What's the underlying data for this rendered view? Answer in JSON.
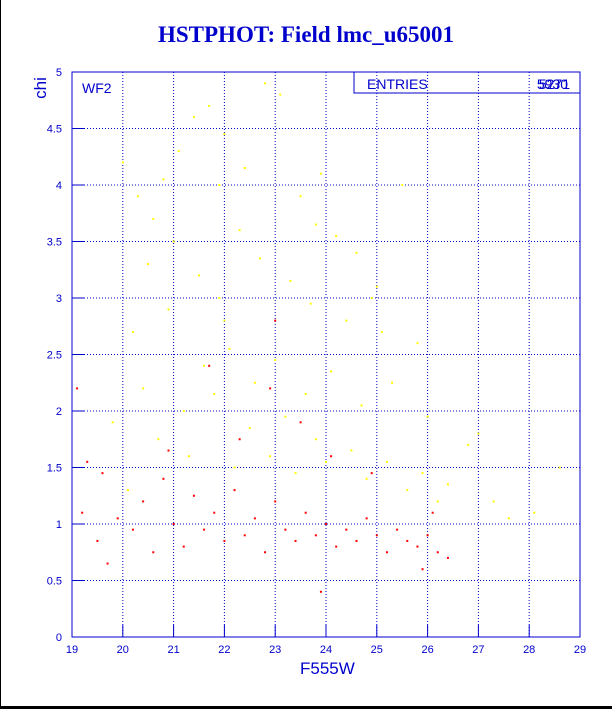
{
  "title": "HSTPHOT: Field lmc_u65001",
  "chart_data": {
    "type": "scatter",
    "title": "HSTPHOT: Field lmc_u65001",
    "xlabel": "F555W",
    "ylabel": "chi",
    "xlim": [
      19,
      29
    ],
    "ylim": [
      0,
      5
    ],
    "xticks": [
      "19",
      "20",
      "21",
      "22",
      "23",
      "24",
      "25",
      "26",
      "27",
      "28",
      "29"
    ],
    "yticks": [
      "0",
      "0.5",
      "1",
      "1.5",
      "2",
      "2.5",
      "3",
      "3.5",
      "4",
      "4.5",
      "5"
    ],
    "grid": true,
    "panel_label": "WF2",
    "stats_label": "ENTRIES",
    "stats_value_a": "5930",
    "stats_value_b": "5271",
    "colors": {
      "axis": "#0000cc",
      "accepted": "#ff0000",
      "rejected": "#ffff00"
    },
    "series": [
      {
        "color": "yellow",
        "values": [
          [
            20.0,
            4.2
          ],
          [
            20.3,
            3.9
          ],
          [
            20.6,
            3.7
          ],
          [
            20.8,
            4.05
          ],
          [
            21.1,
            4.3
          ],
          [
            21.4,
            4.6
          ],
          [
            21.7,
            4.7
          ],
          [
            22.0,
            4.45
          ],
          [
            22.4,
            4.15
          ],
          [
            22.8,
            4.9
          ],
          [
            23.1,
            4.8
          ],
          [
            23.5,
            3.9
          ],
          [
            23.9,
            4.1
          ],
          [
            24.2,
            3.55
          ],
          [
            24.6,
            3.4
          ],
          [
            25.0,
            3.1
          ],
          [
            25.5,
            4.0
          ],
          [
            20.5,
            3.3
          ],
          [
            21.0,
            3.5
          ],
          [
            21.5,
            3.2
          ],
          [
            21.9,
            3.0
          ],
          [
            22.3,
            3.6
          ],
          [
            22.7,
            3.35
          ],
          [
            23.3,
            3.15
          ],
          [
            23.7,
            2.95
          ],
          [
            24.4,
            2.8
          ],
          [
            25.1,
            2.7
          ],
          [
            25.8,
            2.6
          ],
          [
            20.2,
            2.7
          ],
          [
            20.9,
            2.9
          ],
          [
            21.6,
            2.4
          ],
          [
            22.1,
            2.55
          ],
          [
            22.6,
            2.25
          ],
          [
            23.0,
            2.45
          ],
          [
            23.6,
            2.15
          ],
          [
            24.1,
            2.35
          ],
          [
            24.7,
            2.05
          ],
          [
            25.3,
            2.25
          ],
          [
            26.0,
            1.95
          ],
          [
            20.4,
            2.2
          ],
          [
            21.2,
            2.0
          ],
          [
            21.8,
            2.15
          ],
          [
            22.5,
            1.85
          ],
          [
            23.2,
            1.95
          ],
          [
            23.8,
            1.75
          ],
          [
            24.5,
            1.65
          ],
          [
            25.2,
            1.55
          ],
          [
            25.9,
            1.45
          ],
          [
            26.4,
            1.35
          ],
          [
            26.8,
            1.7
          ],
          [
            27.3,
            1.2
          ],
          [
            27.6,
            1.05
          ],
          [
            28.1,
            1.1
          ],
          [
            28.6,
            1.5
          ],
          [
            27.0,
            1.8
          ],
          [
            20.7,
            1.75
          ],
          [
            21.3,
            1.6
          ],
          [
            22.2,
            1.5
          ],
          [
            22.9,
            1.6
          ],
          [
            23.4,
            1.45
          ],
          [
            24.0,
            1.55
          ],
          [
            24.8,
            1.4
          ],
          [
            25.6,
            1.3
          ],
          [
            26.2,
            1.2
          ],
          [
            21.9,
            4.0
          ],
          [
            23.8,
            3.65
          ],
          [
            24.9,
            3.0
          ],
          [
            22.0,
            2.8
          ],
          [
            20.1,
            1.3
          ],
          [
            19.8,
            1.9
          ]
        ]
      },
      {
        "color": "red",
        "values": [
          [
            19.1,
            2.2
          ],
          [
            19.3,
            1.55
          ],
          [
            19.2,
            1.1
          ],
          [
            19.5,
            0.85
          ],
          [
            19.7,
            0.65
          ],
          [
            19.9,
            1.05
          ],
          [
            20.2,
            0.95
          ],
          [
            20.4,
            1.2
          ],
          [
            20.6,
            0.75
          ],
          [
            20.8,
            1.4
          ],
          [
            21.0,
            1.0
          ],
          [
            21.2,
            0.8
          ],
          [
            21.4,
            1.25
          ],
          [
            21.6,
            0.95
          ],
          [
            21.8,
            1.1
          ],
          [
            22.0,
            0.85
          ],
          [
            22.2,
            1.3
          ],
          [
            22.4,
            0.9
          ],
          [
            22.6,
            1.05
          ],
          [
            22.8,
            0.75
          ],
          [
            23.0,
            1.2
          ],
          [
            23.2,
            0.95
          ],
          [
            23.4,
            0.85
          ],
          [
            23.6,
            1.1
          ],
          [
            23.8,
            0.9
          ],
          [
            24.0,
            1.0
          ],
          [
            24.2,
            0.8
          ],
          [
            24.4,
            0.95
          ],
          [
            24.6,
            0.85
          ],
          [
            24.8,
            1.05
          ],
          [
            25.0,
            0.9
          ],
          [
            25.2,
            0.75
          ],
          [
            25.4,
            0.95
          ],
          [
            25.6,
            0.85
          ],
          [
            25.8,
            0.8
          ],
          [
            26.0,
            0.9
          ],
          [
            26.2,
            0.75
          ],
          [
            26.4,
            0.7
          ],
          [
            23.0,
            2.8
          ],
          [
            22.9,
            2.2
          ],
          [
            23.5,
            1.9
          ],
          [
            21.7,
            2.4
          ],
          [
            22.3,
            1.75
          ],
          [
            24.1,
            1.6
          ],
          [
            24.9,
            1.45
          ],
          [
            20.9,
            1.65
          ],
          [
            19.6,
            1.45
          ],
          [
            26.1,
            1.1
          ],
          [
            25.9,
            0.6
          ],
          [
            23.9,
            0.4
          ]
        ]
      }
    ]
  }
}
